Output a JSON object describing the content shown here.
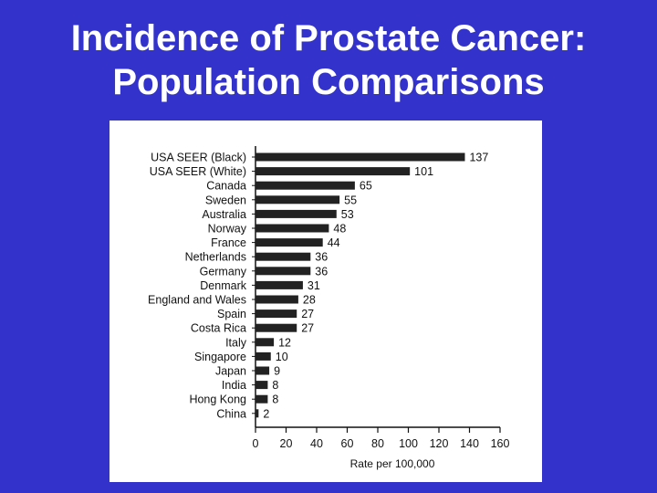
{
  "slide": {
    "title_line1": "Incidence of Prostate Cancer:",
    "title_line2": "Population Comparisons",
    "background_color": "#3333cc",
    "title_color": "#ffffff"
  },
  "chart_data": {
    "type": "bar",
    "orientation": "horizontal",
    "title": "",
    "xlabel": "Rate per 100,000",
    "ylabel": "",
    "xlim": [
      0,
      160
    ],
    "xticks": [
      0,
      20,
      40,
      60,
      80,
      100,
      120,
      140,
      160
    ],
    "bar_color": "#222222",
    "grid": false,
    "data_labels": true,
    "categories": [
      "USA SEER (Black)",
      "USA SEER (White)",
      "Canada",
      "Sweden",
      "Australia",
      "Norway",
      "France",
      "Netherlands",
      "Germany",
      "Denmark",
      "England and Wales",
      "Spain",
      "Costa Rica",
      "Italy",
      "Singapore",
      "Japan",
      "India",
      "Hong Kong",
      "China"
    ],
    "values": [
      137,
      101,
      65,
      55,
      53,
      48,
      44,
      36,
      36,
      31,
      28,
      27,
      27,
      12,
      10,
      9,
      8,
      8,
      2
    ]
  }
}
